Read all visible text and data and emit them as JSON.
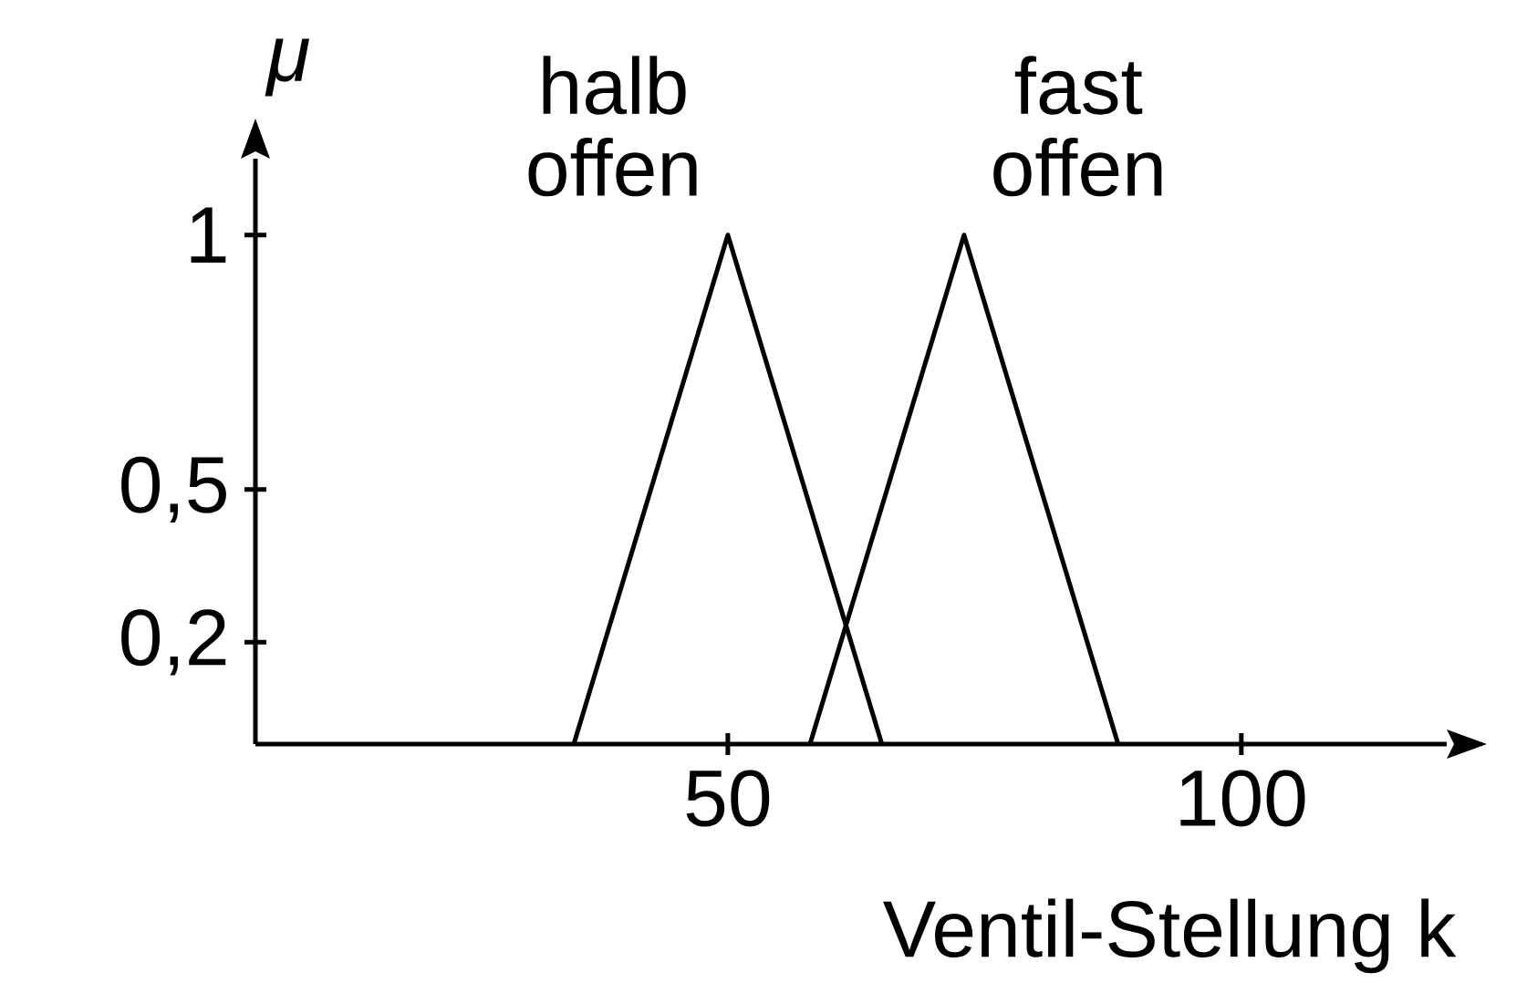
{
  "chart_data": {
    "type": "line",
    "xlabel": "Ventil-Stellung k",
    "ylabel": "μ",
    "series": [
      {
        "name": "halb offen",
        "color": "#000000",
        "x": [
          35,
          50,
          65
        ],
        "values": [
          0,
          1,
          0
        ]
      },
      {
        "name": "fast offen",
        "color": "#000000",
        "x": [
          58,
          73,
          88
        ],
        "values": [
          0,
          1,
          0
        ]
      }
    ],
    "xlim": [
      4,
      120
    ],
    "ylim": [
      0,
      1.15
    ],
    "xticks": [
      50,
      100
    ],
    "yticks": [
      {
        "value": 0.2,
        "label": "0,2"
      },
      {
        "value": 0.5,
        "label": "0,5"
      },
      {
        "value": 1,
        "label": "1"
      }
    ],
    "marker": "none",
    "line_style": "solid",
    "grid": false
  }
}
